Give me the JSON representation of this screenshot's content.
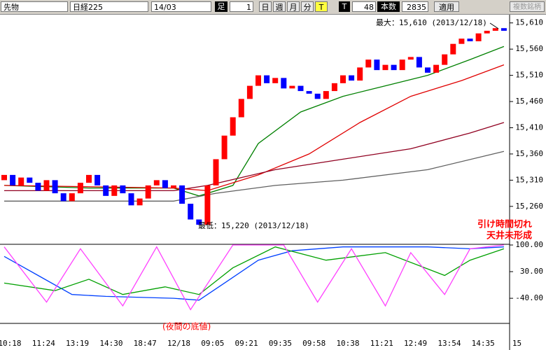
{
  "toolbar": {
    "market": "先物",
    "symbol": "日経225",
    "contract": "14/03",
    "bar_label": "足",
    "bar_size": "1",
    "periods": [
      "日",
      "週",
      "月",
      "分",
      "T"
    ],
    "t_button": "T",
    "count_input": "48",
    "count_label": "本数",
    "total": "2835",
    "apply": "適用",
    "multi": "複数銘柄"
  },
  "chart_data": [
    {
      "type": "candlestick",
      "open": [
        15310,
        15320,
        15300,
        15315,
        15305,
        15290,
        15310,
        15285,
        15270,
        15285,
        15305,
        15320,
        15300,
        15280,
        15300,
        15285,
        15262,
        15275,
        15300,
        15310,
        15295,
        15300,
        15265,
        15235,
        15225,
        15300,
        15350,
        15395,
        15430,
        15465,
        15490,
        15510,
        15495,
        15505,
        15485,
        15490,
        15480,
        15475,
        15465,
        15480,
        15495,
        15510,
        15500,
        15525,
        15540,
        15520,
        15530,
        15520,
        15540,
        15545,
        15525,
        15515,
        15530,
        15550,
        15570,
        15580,
        15575,
        15590,
        15595,
        15600
      ],
      "close": [
        15320,
        15300,
        15315,
        15305,
        15290,
        15310,
        15285,
        15270,
        15285,
        15305,
        15320,
        15300,
        15280,
        15300,
        15285,
        15262,
        15275,
        15300,
        15310,
        15295,
        15300,
        15265,
        15235,
        15225,
        15300,
        15350,
        15395,
        15430,
        15465,
        15490,
        15510,
        15495,
        15505,
        15485,
        15490,
        15480,
        15475,
        15465,
        15480,
        15495,
        15510,
        15500,
        15525,
        15540,
        15520,
        15530,
        15520,
        15540,
        15545,
        15525,
        15515,
        15530,
        15550,
        15570,
        15580,
        15575,
        15590,
        15595,
        15600,
        15595
      ],
      "up_color": "#ff0000",
      "down_color": "#0000ff",
      "ylim": [
        15193,
        15627
      ],
      "yticks": [
        {
          "value": 15610,
          "label": "15,610"
        },
        {
          "value": 15560,
          "label": "15,560"
        },
        {
          "value": 15510,
          "label": "15,510"
        },
        {
          "value": 15460,
          "label": "15,460"
        },
        {
          "value": 15410,
          "label": "15,410"
        },
        {
          "value": 15360,
          "label": "15,360"
        },
        {
          "value": 15310,
          "label": "15,310"
        },
        {
          "value": 15260,
          "label": "15,260"
        }
      ],
      "x_labels": [
        "10:18",
        "11:24",
        "13:19",
        "14:30",
        "18:47",
        "12/18",
        "09:05",
        "09:21",
        "09:35",
        "09:58",
        "10:38",
        "11:21",
        "12:49",
        "13:54",
        "14:35",
        "15"
      ],
      "series": [
        {
          "color": "#008000",
          "x": [
            0,
            10,
            20,
            23,
            27,
            30,
            35,
            40,
            45,
            50,
            55,
            59
          ],
          "values": [
            15300,
            15295,
            15295,
            15280,
            15300,
            15380,
            15440,
            15470,
            15490,
            15510,
            15540,
            15565
          ]
        },
        {
          "color": "#e00000",
          "x": [
            0,
            20,
            24,
            30,
            36,
            42,
            48,
            54,
            59
          ],
          "values": [
            15300,
            15295,
            15290,
            15320,
            15360,
            15420,
            15470,
            15500,
            15530
          ]
        },
        {
          "color": "#900020",
          "x": [
            0,
            20,
            24,
            32,
            40,
            48,
            55,
            59
          ],
          "values": [
            15290,
            15290,
            15300,
            15330,
            15350,
            15370,
            15400,
            15420
          ]
        },
        {
          "color": "#606060",
          "x": [
            0,
            20,
            25,
            32,
            40,
            50,
            59
          ],
          "values": [
            15270,
            15270,
            15285,
            15300,
            15310,
            15330,
            15365
          ]
        }
      ],
      "annotations": [
        "最大：15,610 (2013/12/18)",
        "最低：15,220 (2013/12/18)"
      ],
      "notes": [
        "引け時間切れ",
        "天井未形成"
      ]
    },
    {
      "type": "line",
      "ylim": [
        -106,
        100
      ],
      "yticks": [
        {
          "value": 100,
          "label": "100.00"
        },
        {
          "value": 30,
          "label": "30.00"
        },
        {
          "value": -40,
          "label": "-40.00"
        }
      ],
      "series": [
        {
          "color": "#0040ff",
          "x": [
            0,
            4,
            8,
            12,
            20,
            23,
            26,
            30,
            34,
            40,
            50,
            55,
            59
          ],
          "values": [
            70,
            20,
            -30,
            -35,
            -40,
            -45,
            0,
            60,
            85,
            95,
            95,
            90,
            95
          ]
        },
        {
          "color": "#00a000",
          "x": [
            0,
            6,
            10,
            14,
            19,
            23,
            27,
            32,
            38,
            45,
            52,
            55,
            59
          ],
          "values": [
            0,
            -20,
            10,
            -30,
            -10,
            -30,
            40,
            95,
            60,
            80,
            20,
            60,
            90
          ]
        },
        {
          "color": "#ff40ff",
          "x": [
            0,
            5,
            9,
            14,
            18,
            22,
            27,
            33,
            37,
            41,
            45,
            48,
            52,
            55,
            59
          ],
          "values": [
            95,
            -50,
            90,
            -60,
            95,
            -70,
            100,
            100,
            -50,
            90,
            -60,
            80,
            -30,
            90,
            100
          ]
        }
      ],
      "annotation": "(夜間の底値)"
    }
  ]
}
